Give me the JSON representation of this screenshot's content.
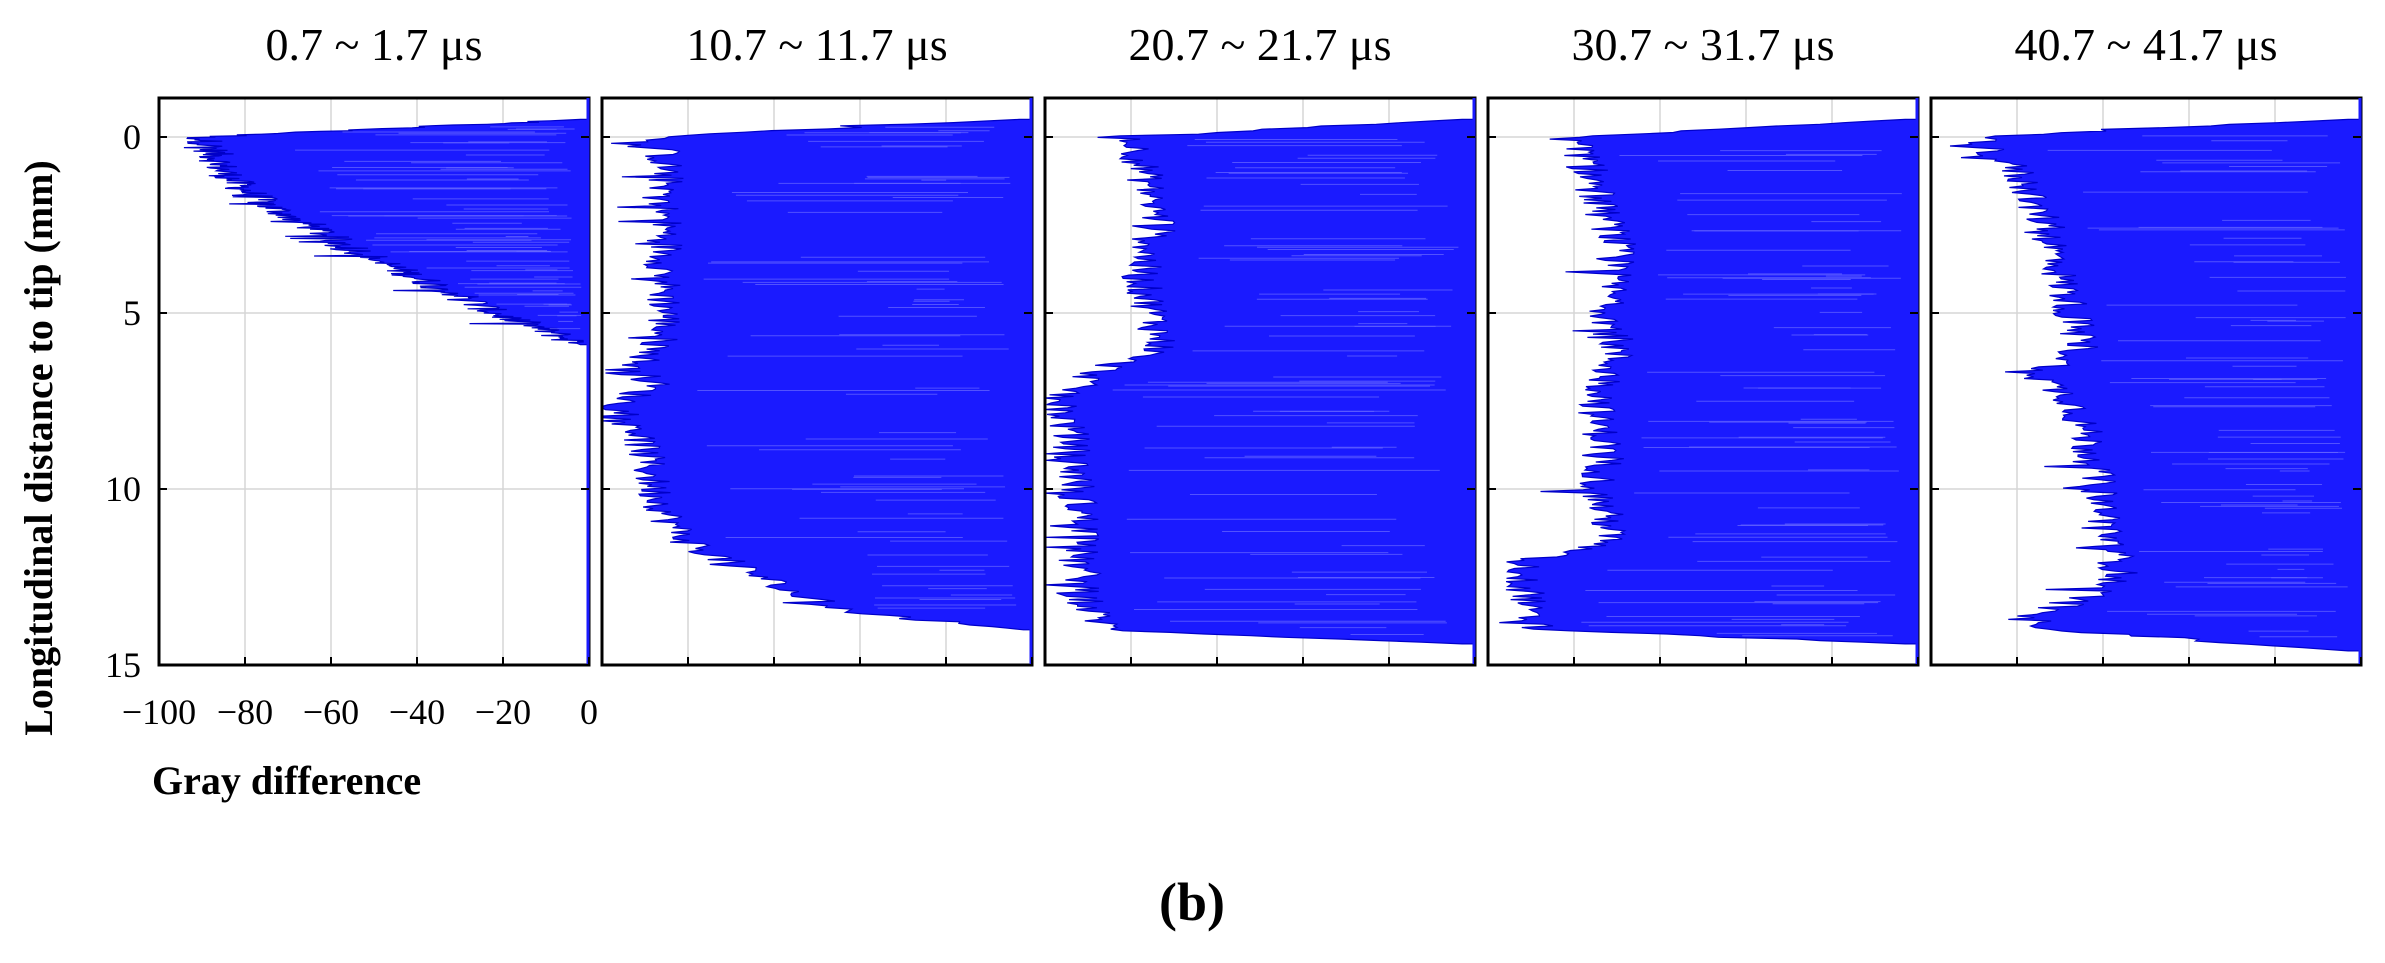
{
  "chart_data": {
    "type": "area",
    "panel_label": "(b)",
    "xlabel": "Gray difference",
    "ylabel": "Longitudinal distance to tip (mm)",
    "xlim": [
      -100,
      0
    ],
    "ylim": [
      0,
      15
    ],
    "y_inverted": true,
    "grid": true,
    "x_ticks": [
      "−100",
      "−80",
      "−60",
      "−40",
      "−20",
      "0"
    ],
    "y_ticks": [
      "0",
      "5",
      "10",
      "15"
    ],
    "series_color": "#1a1aff",
    "panels": [
      {
        "title": "0.7 ~ 1.7 μs",
        "y_start": -0.5,
        "y_end": 5.9,
        "profile": [
          [
            -0.5,
            -2
          ],
          [
            0.0,
            -90
          ],
          [
            0.5,
            -87
          ],
          [
            1.0,
            -85
          ],
          [
            1.5,
            -80
          ],
          [
            2.0,
            -74
          ],
          [
            2.5,
            -65
          ],
          [
            3.0,
            -58
          ],
          [
            3.5,
            -49
          ],
          [
            4.0,
            -40
          ],
          [
            4.5,
            -30
          ],
          [
            5.0,
            -22
          ],
          [
            5.5,
            -10
          ],
          [
            5.9,
            -2
          ]
        ]
      },
      {
        "title": "10.7 ~ 11.7 μs",
        "y_start": -0.5,
        "y_end": 14.0,
        "profile": [
          [
            -0.5,
            -3
          ],
          [
            0.0,
            -87
          ],
          [
            1.0,
            -85
          ],
          [
            2.0,
            -86
          ],
          [
            3.0,
            -85
          ],
          [
            4.0,
            -86
          ],
          [
            5.0,
            -85
          ],
          [
            6.0,
            -87
          ],
          [
            6.6,
            -93
          ],
          [
            7.0,
            -88
          ],
          [
            7.7,
            -97
          ],
          [
            8.0,
            -92
          ],
          [
            9.0,
            -90
          ],
          [
            10.0,
            -88
          ],
          [
            10.5,
            -86
          ],
          [
            11.0,
            -84
          ],
          [
            11.5,
            -80
          ],
          [
            12.0,
            -72
          ],
          [
            12.5,
            -63
          ],
          [
            13.0,
            -55
          ],
          [
            13.5,
            -42
          ],
          [
            14.0,
            -2
          ]
        ]
      },
      {
        "title": "20.7 ~ 21.7 μs",
        "y_start": -0.5,
        "y_end": 14.4,
        "profile": [
          [
            -0.5,
            -3
          ],
          [
            0.0,
            -80
          ],
          [
            1.0,
            -77
          ],
          [
            2.0,
            -75
          ],
          [
            2.5,
            -73
          ],
          [
            3.0,
            -76
          ],
          [
            4.0,
            -78
          ],
          [
            5.0,
            -75
          ],
          [
            6.0,
            -73
          ],
          [
            6.5,
            -85
          ],
          [
            7.0,
            -92
          ],
          [
            7.5,
            -97
          ],
          [
            8.5,
            -94
          ],
          [
            9.5,
            -93
          ],
          [
            10.5,
            -92
          ],
          [
            11.5,
            -90
          ],
          [
            12.0,
            -93
          ],
          [
            12.5,
            -91
          ],
          [
            13.0,
            -92
          ],
          [
            13.5,
            -89
          ],
          [
            14.0,
            -85
          ],
          [
            14.4,
            -3
          ]
        ]
      },
      {
        "title": "30.7 ~ 31.7 μs",
        "y_start": -0.5,
        "y_end": 14.4,
        "profile": [
          [
            -0.5,
            -3
          ],
          [
            0.0,
            -80
          ],
          [
            1.0,
            -76
          ],
          [
            2.0,
            -74
          ],
          [
            3.0,
            -70
          ],
          [
            4.0,
            -71
          ],
          [
            5.0,
            -72
          ],
          [
            6.0,
            -70
          ],
          [
            7.0,
            -73
          ],
          [
            8.0,
            -75
          ],
          [
            9.0,
            -72
          ],
          [
            10.0,
            -75
          ],
          [
            11.0,
            -72
          ],
          [
            11.5,
            -72
          ],
          [
            12.0,
            -90
          ],
          [
            12.5,
            -93
          ],
          [
            13.0,
            -90
          ],
          [
            13.5,
            -92
          ],
          [
            14.0,
            -88
          ],
          [
            14.4,
            -3
          ]
        ]
      },
      {
        "title": "40.7 ~ 41.7 μs",
        "y_start": -0.5,
        "y_end": 14.6,
        "profile": [
          [
            -0.5,
            -3
          ],
          [
            0.0,
            -90
          ],
          [
            1.0,
            -80
          ],
          [
            2.0,
            -75
          ],
          [
            3.0,
            -72
          ],
          [
            4.0,
            -70
          ],
          [
            5.0,
            -67
          ],
          [
            6.0,
            -65
          ],
          [
            6.8,
            -75
          ],
          [
            7.5,
            -67
          ],
          [
            8.5,
            -64
          ],
          [
            9.5,
            -62
          ],
          [
            10.5,
            -60
          ],
          [
            11.5,
            -58
          ],
          [
            12.5,
            -56
          ],
          [
            13.2,
            -65
          ],
          [
            13.6,
            -80
          ],
          [
            14.0,
            -70
          ],
          [
            14.6,
            -3
          ]
        ]
      }
    ]
  }
}
